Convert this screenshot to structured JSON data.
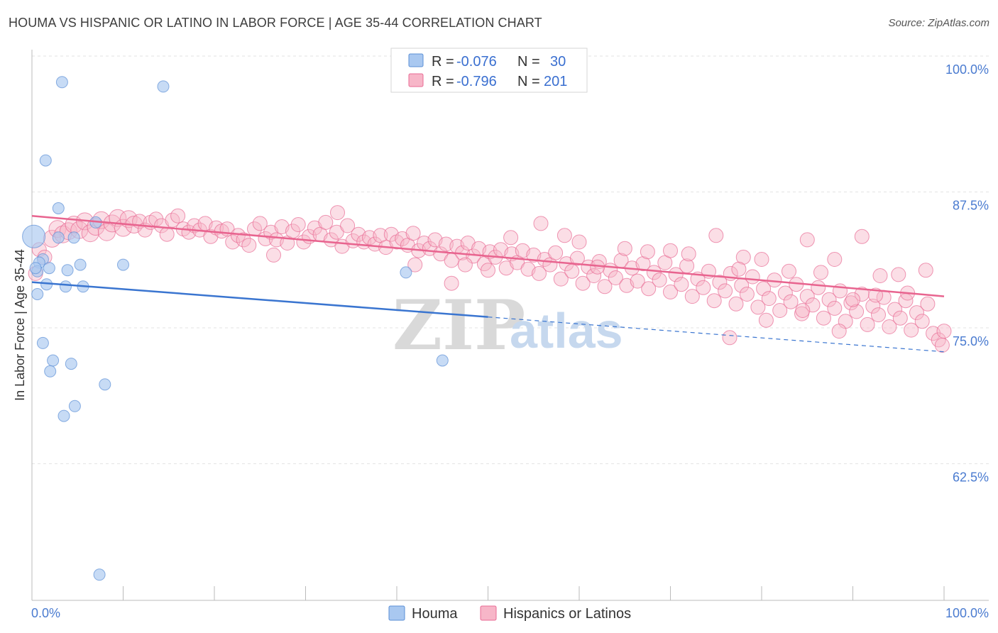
{
  "header": {
    "title": "HOUMA VS HISPANIC OR LATINO IN LABOR FORCE | AGE 35-44 CORRELATION CHART",
    "source": "Source: ZipAtlas.com"
  },
  "legend": {
    "rows": [
      {
        "r_label": "R =",
        "r_value": "-0.076",
        "n_label": "N =",
        "n_value": "30",
        "color": "#a9c8f0"
      },
      {
        "r_label": "R =",
        "r_value": "-0.796",
        "n_label": "N =",
        "n_value": "201",
        "color": "#f7b6c8"
      }
    ],
    "bottom": [
      {
        "label": "Houma",
        "color": "#a9c8f0"
      },
      {
        "label": "Hispanics or Latinos",
        "color": "#f7b6c8"
      }
    ]
  },
  "watermark": {
    "zip": "ZIP",
    "atlas": "atlas"
  },
  "chart_data": {
    "type": "scatter",
    "title": "HOUMA VS HISPANIC OR LATINO IN LABOR FORCE | AGE 35-44 CORRELATION CHART",
    "ylabel": "In Labor Force | Age 35-44",
    "xlabel": "",
    "x_ticks": [
      "0.0%",
      "100.0%"
    ],
    "y_ticks": [
      "100.0%",
      "87.5%",
      "75.0%",
      "62.5%"
    ],
    "xlim": [
      0,
      100
    ],
    "ylim": [
      51.5,
      102.5
    ],
    "grid": true,
    "legend_position": "top-center",
    "series": [
      {
        "name": "Houma",
        "color": "#a9c8f0",
        "stroke": "#5b8fd6",
        "r": -0.076,
        "n": 30,
        "points": [
          [
            0.2,
            83.4,
            16
          ],
          [
            3.3,
            97.6,
            8
          ],
          [
            14.4,
            97.2,
            8
          ],
          [
            1.5,
            90.4,
            8
          ],
          [
            2.9,
            86.0,
            8
          ],
          [
            7.0,
            84.7,
            8
          ],
          [
            2.9,
            83.3,
            8
          ],
          [
            4.6,
            83.3,
            8
          ],
          [
            1.2,
            81.3,
            8
          ],
          [
            0.8,
            81.0,
            8
          ],
          [
            1.9,
            80.5,
            8
          ],
          [
            3.9,
            80.3,
            8
          ],
          [
            5.3,
            80.8,
            8
          ],
          [
            10.0,
            80.8,
            8
          ],
          [
            0.6,
            80.2,
            8
          ],
          [
            1.6,
            79.0,
            8
          ],
          [
            3.7,
            78.8,
            8
          ],
          [
            5.6,
            78.8,
            8
          ],
          [
            0.6,
            78.1,
            8
          ],
          [
            1.2,
            73.6,
            8
          ],
          [
            2.3,
            72.0,
            8
          ],
          [
            4.3,
            71.7,
            8
          ],
          [
            2.0,
            71.0,
            8
          ],
          [
            8.0,
            69.8,
            8
          ],
          [
            4.7,
            67.8,
            8
          ],
          [
            3.5,
            66.9,
            8
          ],
          [
            7.4,
            52.3,
            8
          ],
          [
            41.0,
            80.1,
            8
          ],
          [
            45.0,
            72.0,
            8
          ],
          [
            0.4,
            80.5,
            8
          ]
        ],
        "trend": {
          "x0": 0,
          "y0": 79.2,
          "x1": 50,
          "y1": 76.0,
          "dash_x1": 100,
          "dash_y1": 72.8
        }
      },
      {
        "name": "Hispanics or Latinos",
        "color": "#f7b6c8",
        "stroke": "#e86b94",
        "r": -0.796,
        "n": 201,
        "points": [
          [
            0.4,
            80.0,
            10
          ],
          [
            0.8,
            82.2,
            10
          ],
          [
            1.4,
            81.5,
            10
          ],
          [
            2.2,
            83.2,
            12
          ],
          [
            2.8,
            84.1,
            12
          ],
          [
            3.4,
            83.6,
            12
          ],
          [
            4.0,
            83.9,
            12
          ],
          [
            4.6,
            84.5,
            12
          ],
          [
            5.2,
            84.0,
            12
          ],
          [
            5.8,
            84.8,
            12
          ],
          [
            6.4,
            83.7,
            12
          ],
          [
            7.0,
            84.3,
            12
          ],
          [
            7.6,
            84.9,
            12
          ],
          [
            8.2,
            83.8,
            12
          ],
          [
            8.8,
            84.6,
            12
          ],
          [
            9.4,
            85.1,
            12
          ],
          [
            10.0,
            84.2,
            12
          ],
          [
            10.6,
            85.0,
            12
          ],
          [
            11.2,
            84.5,
            12
          ],
          [
            11.8,
            84.8,
            10
          ],
          [
            12.4,
            84.0,
            10
          ],
          [
            13.0,
            84.7,
            10
          ],
          [
            13.6,
            85.0,
            10
          ],
          [
            14.2,
            84.4,
            10
          ],
          [
            14.8,
            83.6,
            10
          ],
          [
            15.4,
            84.9,
            10
          ],
          [
            16.0,
            85.3,
            10
          ],
          [
            16.6,
            84.1,
            10
          ],
          [
            17.2,
            83.8,
            10
          ],
          [
            17.8,
            84.4,
            10
          ],
          [
            18.4,
            84.0,
            10
          ],
          [
            19.0,
            84.6,
            10
          ],
          [
            19.6,
            83.4,
            10
          ],
          [
            20.2,
            84.2,
            10
          ],
          [
            20.8,
            83.9,
            10
          ],
          [
            21.4,
            84.1,
            10
          ],
          [
            22.0,
            82.9,
            10
          ],
          [
            22.6,
            83.5,
            10
          ],
          [
            23.2,
            83.1,
            10
          ],
          [
            23.8,
            82.6,
            10
          ],
          [
            24.4,
            84.1,
            10
          ],
          [
            25.0,
            84.6,
            10
          ],
          [
            25.6,
            83.2,
            10
          ],
          [
            26.2,
            83.8,
            10
          ],
          [
            26.8,
            83.1,
            10
          ],
          [
            27.4,
            84.3,
            10
          ],
          [
            28.0,
            82.8,
            10
          ],
          [
            28.6,
            83.9,
            10
          ],
          [
            29.2,
            84.5,
            10
          ],
          [
            29.8,
            82.9,
            10
          ],
          [
            30.4,
            83.4,
            10
          ],
          [
            31.0,
            84.2,
            10
          ],
          [
            31.6,
            83.6,
            10
          ],
          [
            32.2,
            84.7,
            10
          ],
          [
            32.8,
            83.1,
            10
          ],
          [
            33.4,
            83.8,
            10
          ],
          [
            34.0,
            82.5,
            10
          ],
          [
            34.6,
            84.4,
            10
          ],
          [
            35.2,
            83.0,
            10
          ],
          [
            35.8,
            83.6,
            10
          ],
          [
            36.4,
            82.9,
            10
          ],
          [
            37.0,
            83.3,
            10
          ],
          [
            37.6,
            82.7,
            10
          ],
          [
            38.2,
            83.5,
            10
          ],
          [
            38.8,
            82.4,
            10
          ],
          [
            39.4,
            83.6,
            10
          ],
          [
            40.0,
            82.9,
            10
          ],
          [
            40.6,
            83.2,
            10
          ],
          [
            41.2,
            82.6,
            10
          ],
          [
            41.8,
            83.7,
            10
          ],
          [
            42.4,
            82.1,
            10
          ],
          [
            43.0,
            82.8,
            10
          ],
          [
            43.6,
            82.3,
            10
          ],
          [
            44.2,
            83.1,
            10
          ],
          [
            44.8,
            81.8,
            10
          ],
          [
            45.4,
            82.7,
            10
          ],
          [
            46.0,
            81.2,
            10
          ],
          [
            46.6,
            82.5,
            10
          ],
          [
            47.2,
            81.9,
            10
          ],
          [
            47.8,
            82.8,
            10
          ],
          [
            48.4,
            81.6,
            10
          ],
          [
            49.0,
            82.3,
            10
          ],
          [
            49.6,
            80.9,
            10
          ],
          [
            50.2,
            82.0,
            10
          ],
          [
            50.8,
            81.5,
            10
          ],
          [
            51.4,
            82.2,
            10
          ],
          [
            52.0,
            80.5,
            10
          ],
          [
            52.6,
            81.8,
            10
          ],
          [
            53.2,
            81.0,
            10
          ],
          [
            53.8,
            82.1,
            10
          ],
          [
            54.4,
            80.4,
            10
          ],
          [
            55.0,
            81.7,
            10
          ],
          [
            55.6,
            80.0,
            10
          ],
          [
            56.2,
            81.3,
            10
          ],
          [
            56.8,
            80.8,
            10
          ],
          [
            57.4,
            81.9,
            10
          ],
          [
            58.0,
            79.5,
            10
          ],
          [
            58.6,
            80.9,
            10
          ],
          [
            59.2,
            80.2,
            10
          ],
          [
            59.8,
            81.4,
            10
          ],
          [
            60.4,
            79.1,
            10
          ],
          [
            61.0,
            80.6,
            10
          ],
          [
            61.6,
            79.8,
            10
          ],
          [
            62.2,
            81.1,
            10
          ],
          [
            62.8,
            78.8,
            10
          ],
          [
            63.4,
            80.3,
            10
          ],
          [
            64.0,
            79.6,
            10
          ],
          [
            64.6,
            81.2,
            10
          ],
          [
            65.2,
            78.9,
            10
          ],
          [
            65.8,
            80.5,
            10
          ],
          [
            66.4,
            79.3,
            10
          ],
          [
            67.0,
            80.9,
            10
          ],
          [
            67.6,
            78.6,
            10
          ],
          [
            68.2,
            80.1,
            10
          ],
          [
            68.8,
            79.4,
            10
          ],
          [
            69.4,
            81.0,
            10
          ],
          [
            70.0,
            78.3,
            10
          ],
          [
            70.6,
            79.9,
            10
          ],
          [
            71.2,
            79.0,
            10
          ],
          [
            71.8,
            80.7,
            10
          ],
          [
            72.4,
            77.9,
            10
          ],
          [
            73.0,
            79.5,
            10
          ],
          [
            73.6,
            78.7,
            10
          ],
          [
            74.2,
            80.2,
            10
          ],
          [
            74.8,
            77.5,
            10
          ],
          [
            75.4,
            79.2,
            10
          ],
          [
            76.0,
            78.4,
            10
          ],
          [
            76.6,
            80.0,
            10
          ],
          [
            77.2,
            77.2,
            10
          ],
          [
            77.8,
            78.9,
            10
          ],
          [
            78.4,
            78.1,
            10
          ],
          [
            79.0,
            79.7,
            10
          ],
          [
            79.6,
            76.9,
            10
          ],
          [
            80.2,
            78.6,
            10
          ],
          [
            80.8,
            77.7,
            10
          ],
          [
            81.4,
            79.4,
            10
          ],
          [
            82.0,
            76.6,
            10
          ],
          [
            82.6,
            78.2,
            10
          ],
          [
            83.2,
            77.4,
            10
          ],
          [
            83.8,
            79.0,
            10
          ],
          [
            84.4,
            76.3,
            10
          ],
          [
            85.0,
            77.9,
            10
          ],
          [
            85.6,
            77.1,
            10
          ],
          [
            86.2,
            78.7,
            10
          ],
          [
            86.8,
            75.9,
            10
          ],
          [
            87.4,
            77.6,
            10
          ],
          [
            88.0,
            76.8,
            10
          ],
          [
            88.6,
            78.4,
            10
          ],
          [
            89.2,
            75.6,
            10
          ],
          [
            89.8,
            77.3,
            10
          ],
          [
            90.4,
            76.5,
            10
          ],
          [
            91.0,
            78.1,
            10
          ],
          [
            91.6,
            75.3,
            10
          ],
          [
            92.2,
            77.0,
            10
          ],
          [
            92.8,
            76.2,
            10
          ],
          [
            93.4,
            77.8,
            10
          ],
          [
            94.0,
            75.1,
            10
          ],
          [
            94.6,
            76.7,
            10
          ],
          [
            95.2,
            75.9,
            10
          ],
          [
            95.8,
            77.5,
            10
          ],
          [
            96.4,
            74.8,
            10
          ],
          [
            97.0,
            76.4,
            10
          ],
          [
            97.6,
            75.6,
            10
          ],
          [
            98.2,
            77.2,
            10
          ],
          [
            98.8,
            74.5,
            10
          ],
          [
            99.4,
            73.9,
            10
          ],
          [
            99.8,
            73.4,
            10
          ],
          [
            100.0,
            74.7,
            10
          ],
          [
            55.8,
            84.6,
            10
          ],
          [
            58.4,
            83.5,
            10
          ],
          [
            60.0,
            82.9,
            10
          ],
          [
            65.0,
            82.3,
            10
          ],
          [
            70.0,
            82.1,
            10
          ],
          [
            72.0,
            81.8,
            10
          ],
          [
            75.0,
            83.5,
            10
          ],
          [
            78.0,
            81.5,
            10
          ],
          [
            80.0,
            81.3,
            10
          ],
          [
            85.0,
            83.1,
            10
          ],
          [
            88.0,
            81.3,
            10
          ],
          [
            91.0,
            83.4,
            10
          ],
          [
            93.0,
            79.8,
            10
          ],
          [
            95.0,
            79.9,
            10
          ],
          [
            98.0,
            80.3,
            10
          ],
          [
            46.0,
            79.1,
            10
          ],
          [
            50.0,
            80.3,
            10
          ],
          [
            52.5,
            83.3,
            10
          ],
          [
            26.5,
            81.7,
            10
          ],
          [
            33.5,
            85.6,
            10
          ],
          [
            42.0,
            80.8,
            10
          ],
          [
            47.5,
            80.8,
            10
          ],
          [
            62.0,
            80.6,
            10
          ],
          [
            67.5,
            82.0,
            10
          ],
          [
            77.5,
            80.4,
            10
          ],
          [
            83.0,
            80.2,
            10
          ],
          [
            86.5,
            80.1,
            10
          ],
          [
            90.0,
            77.6,
            10
          ],
          [
            92.5,
            78.0,
            10
          ],
          [
            96.0,
            78.2,
            10
          ],
          [
            76.5,
            74.1,
            10
          ],
          [
            88.5,
            74.7,
            10
          ],
          [
            80.5,
            75.7,
            10
          ],
          [
            84.5,
            76.6,
            10
          ]
        ],
        "trend": {
          "x0": 0,
          "y0": 85.3,
          "x1": 100,
          "y1": 77.9
        }
      }
    ]
  }
}
